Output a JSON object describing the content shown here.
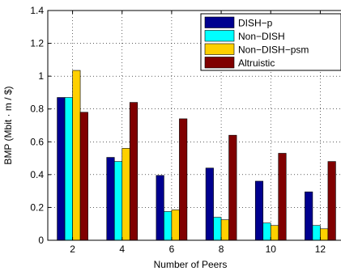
{
  "chart_data": {
    "type": "bar",
    "xlabel": "Number of Peers",
    "ylabel": "BMP (Mbit · m / $)",
    "categories": [
      "2",
      "4",
      "6",
      "8",
      "10",
      "12"
    ],
    "ylim": [
      0,
      1.4
    ],
    "yticks": [
      "0",
      "0.2",
      "0.4",
      "0.6",
      "0.8",
      "1",
      "1.2",
      "1.4"
    ],
    "grid": true,
    "legend_position": "top-right",
    "series": [
      {
        "name": "DISH−p",
        "color": "#00008f",
        "values": [
          0.87,
          0.505,
          0.395,
          0.44,
          0.36,
          0.295
        ]
      },
      {
        "name": "Non−DISH",
        "color": "#00ffff",
        "values": [
          0.87,
          0.48,
          0.175,
          0.14,
          0.105,
          0.09
        ]
      },
      {
        "name": "Non−DISH−psm",
        "color": "#ffd000",
        "values": [
          1.035,
          0.56,
          0.185,
          0.125,
          0.09,
          0.07
        ]
      },
      {
        "name": "Altruistic",
        "color": "#800000",
        "values": [
          0.78,
          0.84,
          0.74,
          0.64,
          0.53,
          0.48
        ]
      }
    ]
  }
}
